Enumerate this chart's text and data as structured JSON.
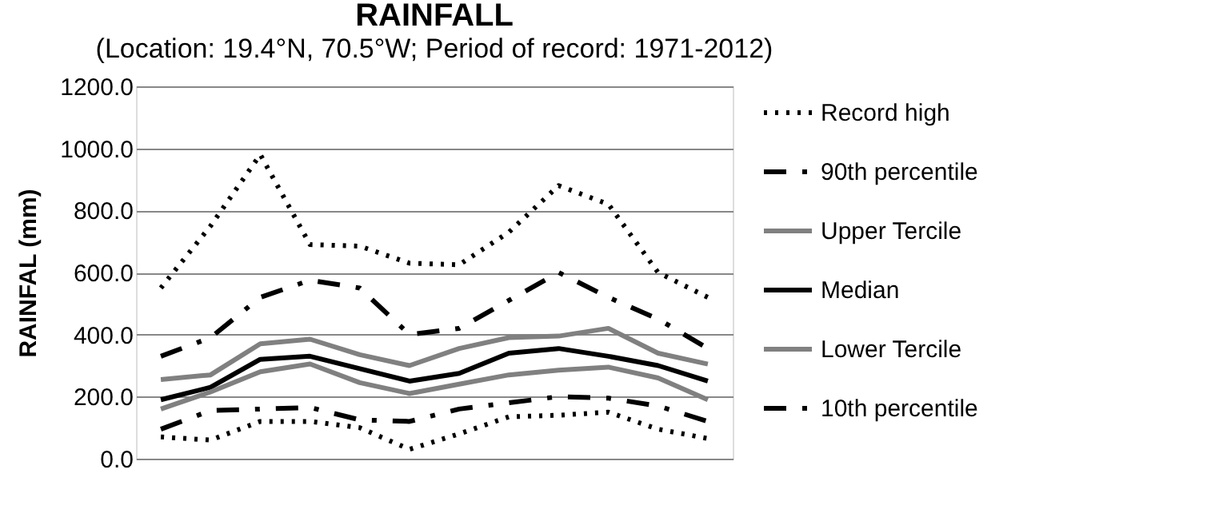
{
  "chart_data": {
    "type": "line",
    "title": "RAINFALL",
    "subtitle": "(Location: 19.4°N, 70.5°W; Period of record: 1971-2012)",
    "ylabel": "RAINFAL (mm)",
    "categories": [
      null,
      null,
      null,
      null,
      null,
      null,
      null,
      null,
      null,
      null,
      null,
      null
    ],
    "ylim": [
      0,
      1200
    ],
    "yticks": [
      {
        "value": 0,
        "label": "0.0"
      },
      {
        "value": 200,
        "label": "200.0"
      },
      {
        "value": 400,
        "label": "400.0"
      },
      {
        "value": 600,
        "label": "600.0"
      },
      {
        "value": 800,
        "label": "800.0"
      },
      {
        "value": 1000,
        "label": "1000.0"
      },
      {
        "value": 1200,
        "label": "1200.0"
      }
    ],
    "grid": "y",
    "legend": "right",
    "tick_labels": "y",
    "series": [
      {
        "name": "Record high",
        "color": "#000000",
        "line_style": "dotted",
        "values": [
          550,
          750,
          980,
          690,
          685,
          630,
          625,
          730,
          880,
          820,
          600,
          520
        ]
      },
      {
        "name": "90th percentile",
        "color": "#000000",
        "line_style": "dashed",
        "values": [
          330,
          390,
          520,
          575,
          550,
          400,
          420,
          510,
          600,
          520,
          450,
          355
        ]
      },
      {
        "name": "Upper Tercile",
        "color": "#808080",
        "line_style": "solid",
        "values": [
          255,
          270,
          370,
          385,
          335,
          300,
          355,
          390,
          395,
          420,
          340,
          305
        ]
      },
      {
        "name": "Median",
        "color": "#000000",
        "line_style": "solid",
        "values": [
          190,
          230,
          320,
          330,
          290,
          250,
          275,
          340,
          355,
          330,
          300,
          250
        ]
      },
      {
        "name": "Lower Tercile",
        "color": "#808080",
        "line_style": "solid",
        "values": [
          160,
          215,
          280,
          305,
          245,
          210,
          240,
          270,
          285,
          295,
          260,
          190
        ]
      },
      {
        "name": "10th percentile",
        "color": "#000000",
        "line_style": "dashed",
        "values": [
          95,
          155,
          160,
          165,
          125,
          120,
          160,
          180,
          200,
          195,
          170,
          120
        ]
      },
      {
        "color": "#000000",
        "line_style": "dotted",
        "values": [
          70,
          60,
          120,
          120,
          100,
          30,
          80,
          135,
          140,
          150,
          95,
          65
        ]
      }
    ]
  }
}
